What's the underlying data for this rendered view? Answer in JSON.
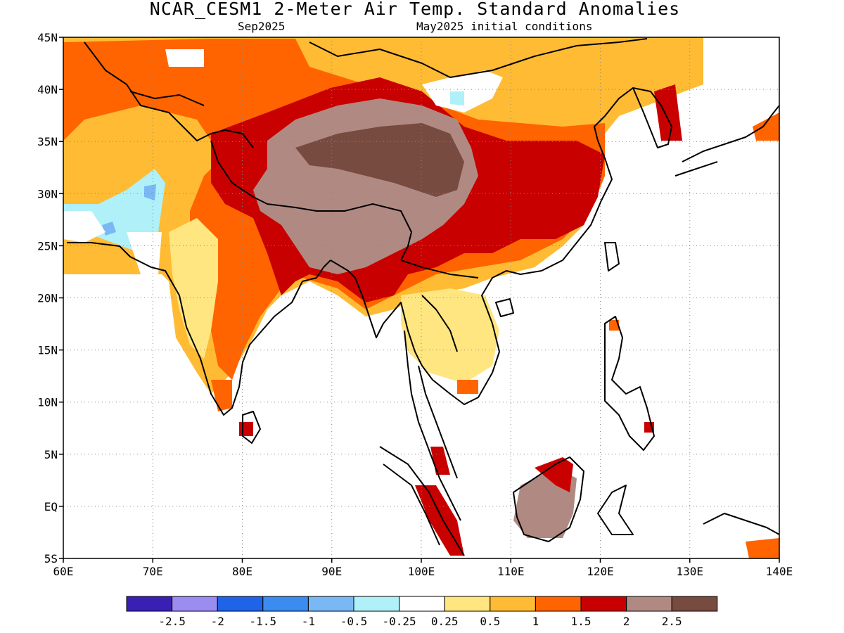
{
  "title": "NCAR_CESM1 2-Meter Air Temp. Standard Anomalies",
  "subtitle_left": "Sep2025",
  "subtitle_right": "May2025 initial conditions",
  "map": {
    "lon_range": [
      60,
      140
    ],
    "lat_range": [
      -5,
      45
    ],
    "lon_ticks": [
      "60E",
      "70E",
      "80E",
      "90E",
      "100E",
      "110E",
      "120E",
      "130E",
      "140E"
    ],
    "lat_ticks": [
      "45N",
      "40N",
      "35N",
      "30N",
      "25N",
      "20N",
      "15N",
      "10N",
      "5N",
      "EQ",
      "5S"
    ],
    "grid": "dotted"
  },
  "colorbar": {
    "colors": [
      "#3a1fb5",
      "#9b8cf2",
      "#1f64e8",
      "#3a8cf0",
      "#7ab8f5",
      "#b0f0f8",
      "#ffffff",
      "#ffe680",
      "#ffbb33",
      "#ff6400",
      "#c80000",
      "#b08a82",
      "#784b40"
    ],
    "labels": [
      "-2.5",
      "-2",
      "-1.5",
      "-1",
      "-0.5",
      "-0.25",
      "0.25",
      "0.5",
      "1",
      "1.5",
      "2",
      "2.5"
    ]
  }
}
